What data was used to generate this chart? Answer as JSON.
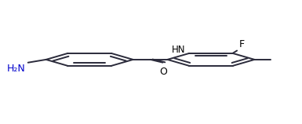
{
  "bg_color": "#ffffff",
  "line_color": "#2b2b3b",
  "text_color_black": "#000000",
  "text_color_blue": "#0000cc",
  "lw": 1.4,
  "figsize": [
    3.85,
    1.58
  ],
  "dpi": 100,
  "r1x": 0.295,
  "r1y": 0.52,
  "r1r": 0.145,
  "r2x": 0.7,
  "r2y": 0.52,
  "r2r": 0.145,
  "doff_scale": 0.022,
  "shrink": 0.14,
  "ring1_doubles": [
    0,
    2,
    4
  ],
  "ring2_doubles": [
    1,
    3,
    5
  ],
  "H2N_text": "H₂N",
  "HN_text": "HN",
  "F_text": "F",
  "O_text": "O"
}
